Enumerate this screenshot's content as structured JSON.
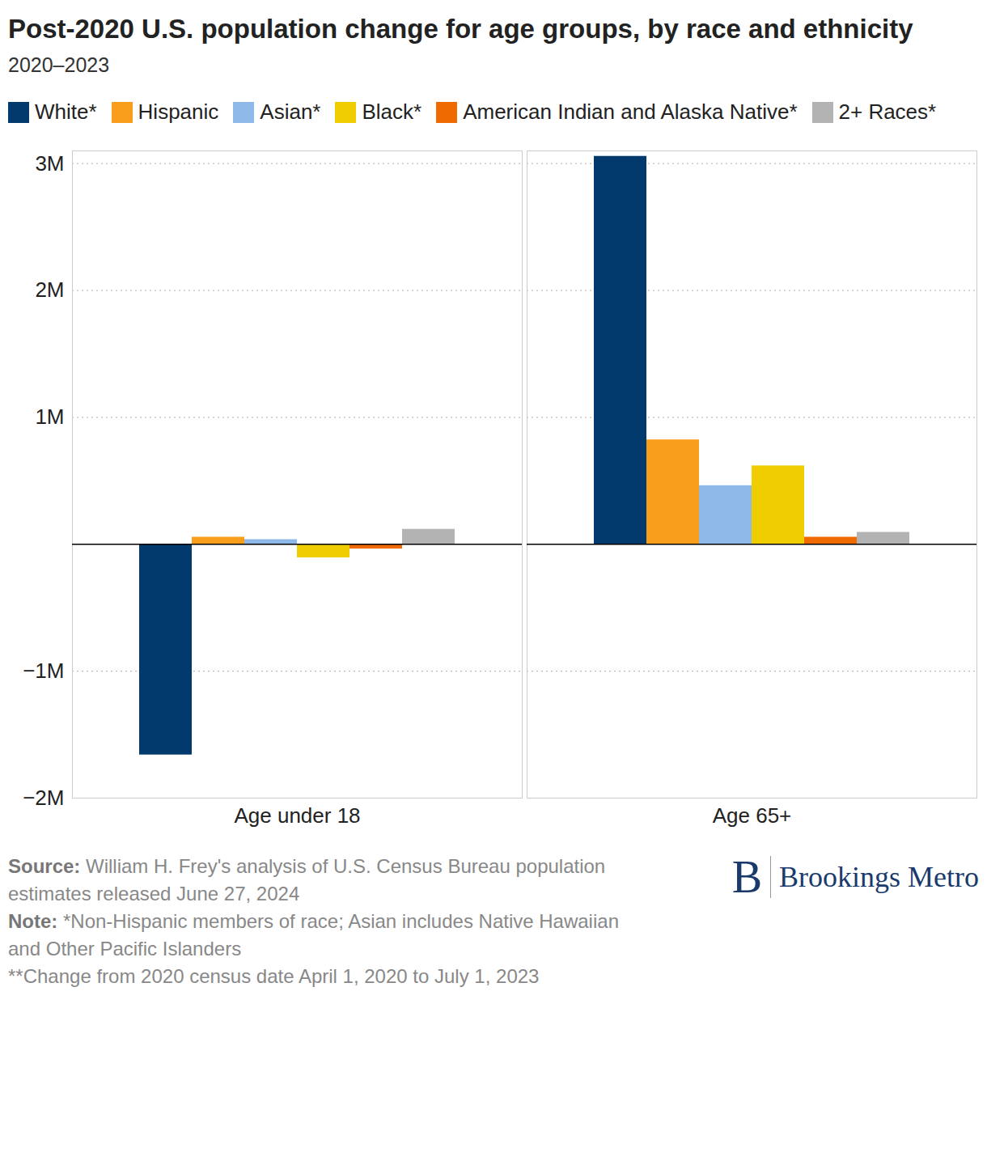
{
  "chart_data": {
    "type": "bar",
    "title": "Post-2020 U.S. population change for age groups, by race and ethnicity",
    "subtitle": "2020–2023",
    "categories": [
      "Age under 18",
      "Age 65+"
    ],
    "series": [
      {
        "name": "White*",
        "color": "#033a6e",
        "values": [
          -1660000,
          3057000
        ]
      },
      {
        "name": "Hispanic",
        "color": "#f99e1c",
        "values": [
          56000,
          823000
        ]
      },
      {
        "name": "Asian*",
        "color": "#8db8e8",
        "values": [
          37000,
          462000
        ]
      },
      {
        "name": "Black*",
        "color": "#f0cd00",
        "values": [
          -106000,
          618000
        ]
      },
      {
        "name": "American Indian and Alaska Native*",
        "color": "#ef6a00",
        "values": [
          -37000,
          56000
        ]
      },
      {
        "name": "2+ Races*",
        "color": "#b3b3b3",
        "values": [
          118000,
          94000
        ]
      }
    ],
    "ylim": [
      -2000000,
      3100000
    ],
    "yticks": [
      {
        "value": -2000000,
        "label": "−2M"
      },
      {
        "value": -1000000,
        "label": "−1M"
      },
      {
        "value": 1000000,
        "label": "1M"
      },
      {
        "value": 2000000,
        "label": "2M"
      },
      {
        "value": 3000000,
        "label": "3M"
      }
    ],
    "grid": true,
    "legend": "top",
    "source": {
      "label": "Source:",
      "text": "William H. Frey's analysis of U.S. Census Bureau population estimates released June 27, 2024"
    },
    "notes": [
      {
        "label": "Note:",
        "text": "*Non-Hispanic members of race; Asian includes Native Hawaiian and Other Pacific Islanders"
      },
      {
        "label": "",
        "text": "**Change from 2020 census date April 1, 2020 to July 1, 2023"
      }
    ],
    "logo_mark": "B",
    "brand": "Brookings Metro"
  }
}
